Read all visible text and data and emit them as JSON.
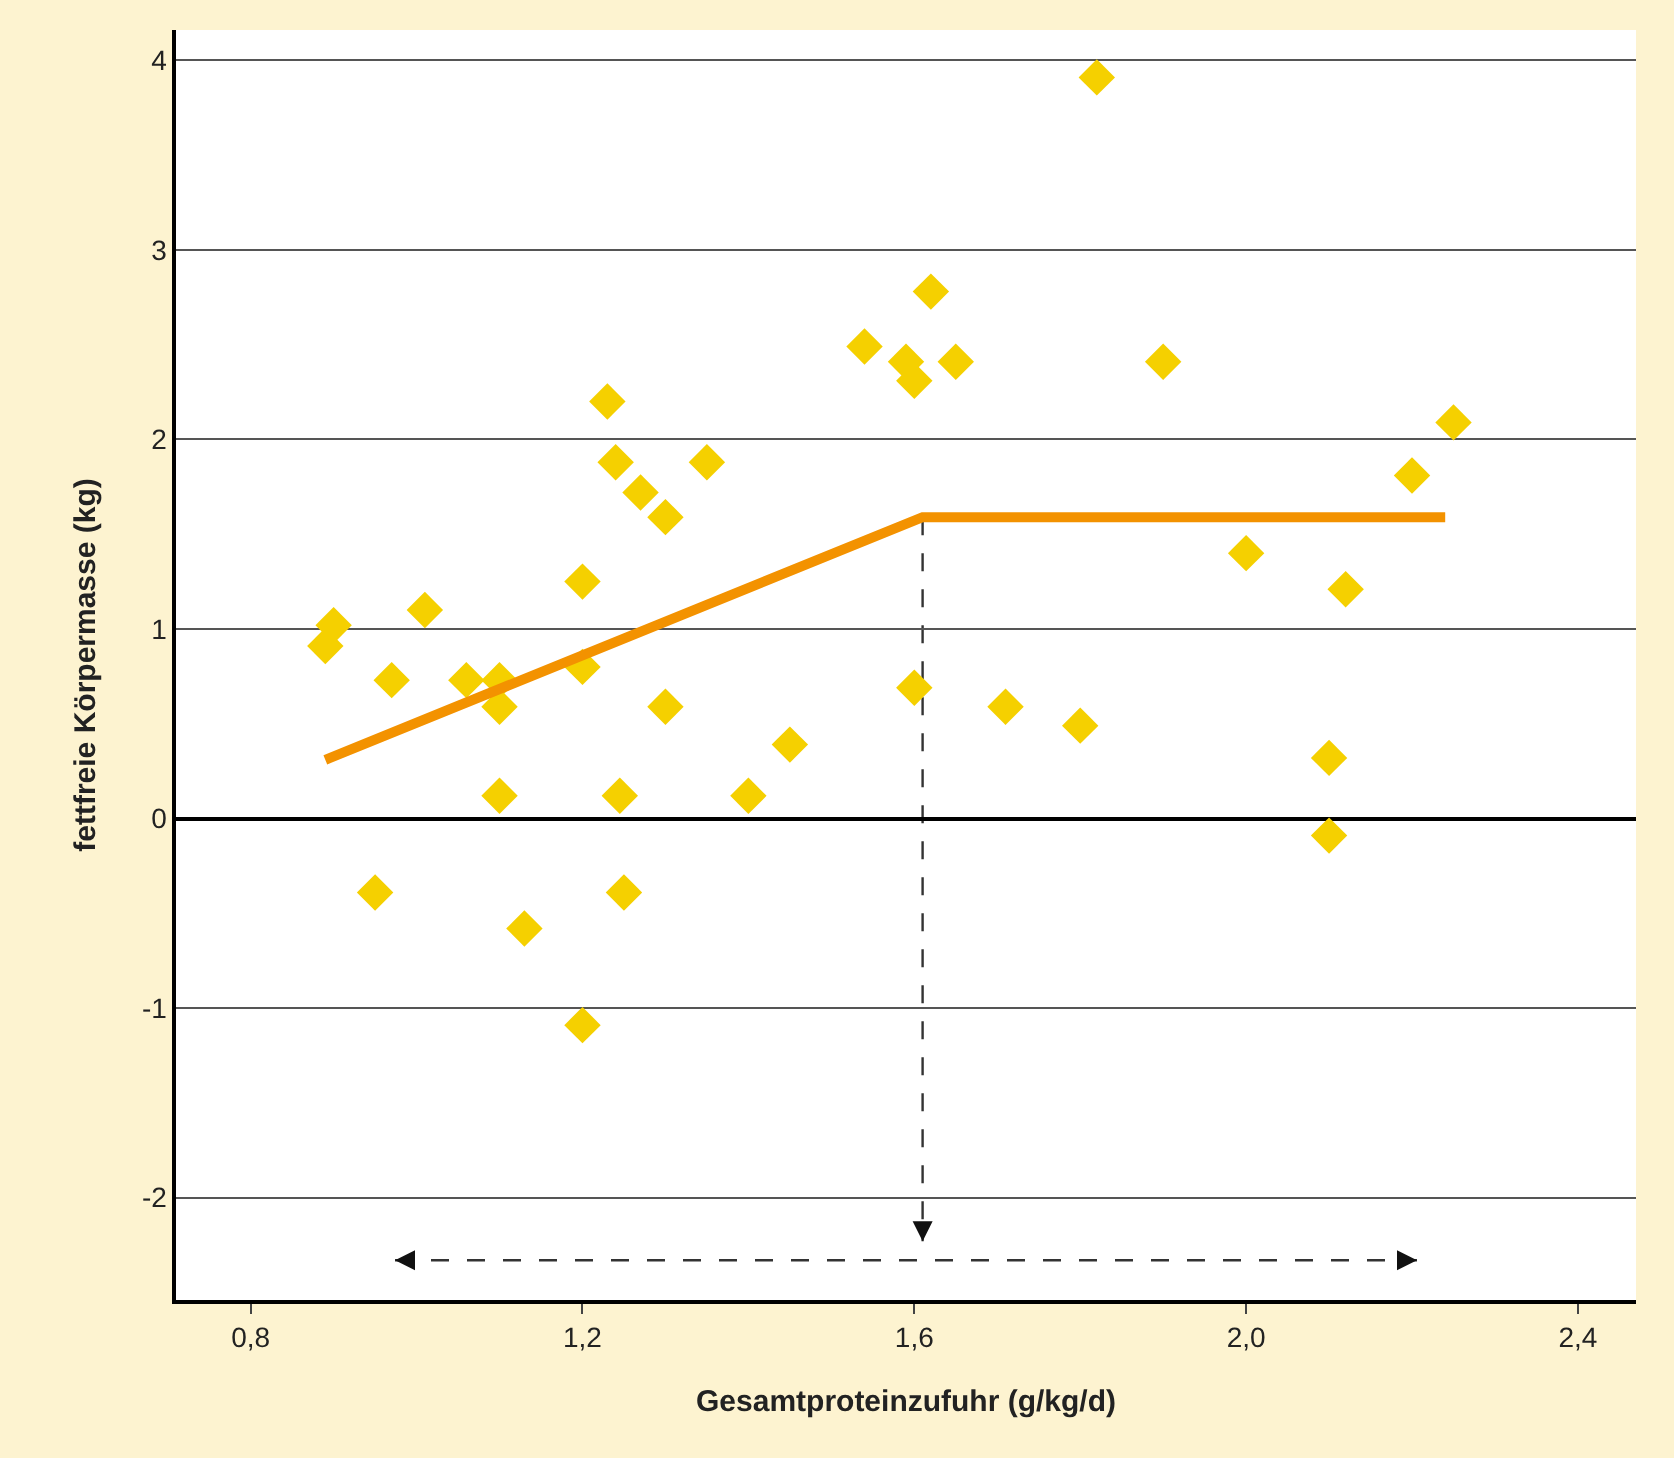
{
  "chart_data": {
    "type": "scatter",
    "xlabel": "Gesamtproteinzufuhr (g/kg/d)",
    "ylabel": "fettfreie Körpermasse (kg)",
    "xlim": [
      0.71,
      2.47
    ],
    "xticks": [
      {
        "value": 0.8,
        "label": "0,8"
      },
      {
        "value": 1.2,
        "label": "1,2"
      },
      {
        "value": 1.6,
        "label": "1,6"
      },
      {
        "value": 2.0,
        "label": "2,0"
      },
      {
        "value": 2.4,
        "label": "2,4"
      }
    ],
    "ylim": [
      -2.54,
      4.16
    ],
    "yticks": [
      -2,
      -1,
      0,
      1,
      2,
      3,
      4
    ],
    "grid": "y",
    "series": [
      {
        "color": "#f5d000",
        "marker": "diamond",
        "x": [
          0.89,
          0.9,
          0.97,
          0.95,
          1.01,
          1.06,
          1.1,
          1.1,
          1.1,
          1.13,
          1.2,
          1.2,
          1.2,
          1.23,
          1.24,
          1.245,
          1.25,
          1.27,
          1.3,
          1.3,
          1.35,
          1.4,
          1.45,
          1.54,
          1.59,
          1.6,
          1.6,
          1.62,
          1.65,
          1.71,
          1.8,
          1.82,
          1.9,
          2.0,
          2.1,
          2.1,
          2.12,
          2.2,
          2.25
        ],
        "values": [
          0.91,
          1.02,
          0.73,
          -0.39,
          1.1,
          0.73,
          0.73,
          0.59,
          0.12,
          -0.58,
          1.25,
          0.8,
          -1.09,
          2.2,
          1.88,
          0.12,
          -0.39,
          1.72,
          1.59,
          0.59,
          1.88,
          0.12,
          0.39,
          2.49,
          2.41,
          2.31,
          0.69,
          2.78,
          2.41,
          0.59,
          0.49,
          3.91,
          2.41,
          1.4,
          0.32,
          -0.09,
          1.21,
          1.81,
          2.09
        ]
      },
      {
        "type": "line",
        "color": "#f39200",
        "marker": "none",
        "line_style": "solid",
        "x": [
          0.89,
          1.61,
          2.24
        ],
        "values": [
          0.31,
          1.59,
          1.59
        ]
      }
    ],
    "ref_lines": [
      {
        "axis": "x",
        "value": 1.61,
        "color": "#333333",
        "line_style": "dashed"
      },
      {
        "axis": "y",
        "value": -2.33,
        "color": "#333333",
        "line_style": "dashed"
      }
    ]
  }
}
